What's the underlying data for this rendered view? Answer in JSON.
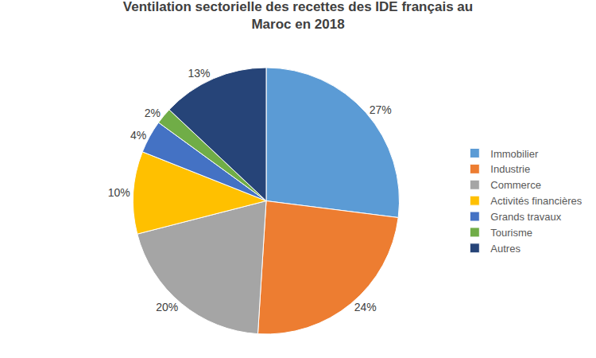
{
  "chart_data": {
    "type": "pie",
    "title": "Ventilation sectorielle des recettes des IDE français au\nMaroc en 2018",
    "categories": [
      "Immobilier",
      "Industrie",
      "Commerce",
      "Activités financières",
      "Grands travaux",
      "Tourisme",
      "Autres"
    ],
    "values": [
      27,
      24,
      20,
      10,
      4,
      2,
      13
    ],
    "value_labels": [
      "27%",
      "24%",
      "20%",
      "10%",
      "4%",
      "2%",
      "13%"
    ],
    "colors": [
      "#5B9BD5",
      "#ED7D31",
      "#A5A5A5",
      "#FFC000",
      "#4472C4",
      "#70AD47",
      "#264478"
    ],
    "data_labels": true,
    "legend": "right"
  }
}
